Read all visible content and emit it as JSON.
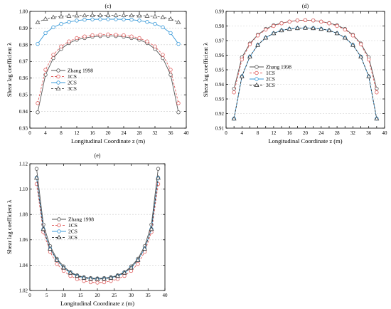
{
  "chart_data": [
    {
      "type": "line",
      "panel_label": "(c)",
      "xlabel": "Longitudinal Coordinate z (m)",
      "ylabel": "Shear lag coefficient λ",
      "xlim": [
        0,
        40
      ],
      "ylim": [
        0.93,
        1.0
      ],
      "xticks": [
        0,
        4,
        8,
        12,
        16,
        20,
        24,
        28,
        32,
        36,
        40
      ],
      "yticks": [
        0.93,
        0.94,
        0.95,
        0.96,
        0.97,
        0.98,
        0.99,
        1.0
      ],
      "ytick_labels": [
        "0.93",
        "0.94",
        "0.95",
        "0.96",
        "0.97",
        "0.98",
        "0.99",
        "1.00"
      ],
      "grid": true,
      "legend_position": "center-left",
      "x": [
        2,
        4,
        6,
        8,
        10,
        12,
        14,
        16,
        18,
        20,
        22,
        24,
        26,
        28,
        30,
        32,
        34,
        36,
        38
      ],
      "series": [
        {
          "name": "Zhang 1998",
          "color": "#555555",
          "marker": "circle",
          "dash": "solid",
          "values": [
            0.9395,
            0.962,
            0.972,
            0.9775,
            0.981,
            0.983,
            0.984,
            0.9848,
            0.9852,
            0.9853,
            0.9852,
            0.9848,
            0.984,
            0.983,
            0.981,
            0.9775,
            0.972,
            0.962,
            0.9395
          ]
        },
        {
          "name": "1CS",
          "color": "#e06060",
          "marker": "circle",
          "dash": "dashed",
          "values": [
            0.945,
            0.965,
            0.974,
            0.979,
            0.982,
            0.984,
            0.985,
            0.9857,
            0.986,
            0.9862,
            0.986,
            0.9857,
            0.985,
            0.984,
            0.982,
            0.979,
            0.974,
            0.965,
            0.945
          ]
        },
        {
          "name": "2CS",
          "color": "#3a9ad9",
          "marker": "circle",
          "dash": "solid",
          "values": [
            0.9805,
            0.987,
            0.9905,
            0.9925,
            0.9937,
            0.9945,
            0.995,
            0.9952,
            0.9953,
            0.9953,
            0.9953,
            0.9952,
            0.995,
            0.9945,
            0.9937,
            0.9925,
            0.9905,
            0.987,
            0.9805
          ]
        },
        {
          "name": "3CS",
          "color": "#555555",
          "marker": "triangle",
          "dash": "dashed",
          "values": [
            0.9935,
            0.9955,
            0.9965,
            0.997,
            0.9973,
            0.9975,
            0.9976,
            0.9977,
            0.9977,
            0.9977,
            0.9977,
            0.9977,
            0.9976,
            0.9975,
            0.9973,
            0.997,
            0.9965,
            0.9955,
            0.9935
          ]
        }
      ]
    },
    {
      "type": "line",
      "panel_label": "(d)",
      "xlabel": "Longitudinal Coordinate z (m)",
      "ylabel": "Shear lag coefficient λ",
      "xlim": [
        0,
        40
      ],
      "ylim": [
        0.91,
        0.99
      ],
      "xticks": [
        0,
        2,
        4,
        6,
        8,
        10,
        12,
        14,
        16,
        18,
        20,
        22,
        24,
        26,
        28,
        30,
        32,
        34,
        36,
        38,
        40
      ],
      "xtick_labels": [
        "0",
        "",
        "4",
        "",
        "8",
        "",
        "12",
        "",
        "16",
        "",
        "20",
        "",
        "24",
        "",
        "28",
        "",
        "32",
        "",
        "36",
        "",
        "40"
      ],
      "yticks": [
        0.91,
        0.92,
        0.93,
        0.94,
        0.95,
        0.96,
        0.97,
        0.98,
        0.99
      ],
      "ytick_labels": [
        "0.91",
        "0.92",
        "0.93",
        "0.94",
        "0.95",
        "0.96",
        "0.97",
        "0.98",
        "0.99"
      ],
      "grid": true,
      "legend_position": "center",
      "x": [
        2,
        4,
        6,
        8,
        10,
        12,
        14,
        16,
        18,
        20,
        22,
        24,
        26,
        28,
        30,
        32,
        34,
        36,
        38
      ],
      "series": [
        {
          "name": "Zhang 1998",
          "color": "#555555",
          "marker": "circle",
          "dash": "solid",
          "values": [
            0.937,
            0.9585,
            0.968,
            0.974,
            0.978,
            0.9805,
            0.982,
            0.983,
            0.9838,
            0.984,
            0.9838,
            0.983,
            0.982,
            0.9805,
            0.978,
            0.974,
            0.968,
            0.9585,
            0.937
          ]
        },
        {
          "name": "1CS",
          "color": "#e06060",
          "marker": "circle",
          "dash": "dashed",
          "values": [
            0.9345,
            0.957,
            0.9675,
            0.9735,
            0.9775,
            0.98,
            0.9818,
            0.983,
            0.9838,
            0.984,
            0.9838,
            0.983,
            0.9818,
            0.98,
            0.9775,
            0.9735,
            0.9675,
            0.957,
            0.9345
          ]
        },
        {
          "name": "2CS",
          "color": "#3a9ad9",
          "marker": "circle",
          "dash": "solid",
          "values": [
            0.9165,
            0.9455,
            0.959,
            0.967,
            0.972,
            0.975,
            0.977,
            0.978,
            0.9785,
            0.9787,
            0.9785,
            0.978,
            0.977,
            0.975,
            0.972,
            0.967,
            0.959,
            0.9455,
            0.9165
          ]
        },
        {
          "name": "3CS",
          "color": "#333333",
          "marker": "triangle",
          "dash": "dashed",
          "values": [
            0.9165,
            0.9455,
            0.959,
            0.967,
            0.972,
            0.975,
            0.977,
            0.978,
            0.9785,
            0.9787,
            0.9785,
            0.978,
            0.977,
            0.975,
            0.972,
            0.967,
            0.959,
            0.9455,
            0.9165
          ]
        }
      ]
    },
    {
      "type": "line",
      "panel_label": "(e)",
      "xlabel": "Longitudinal Coordinate z (m)",
      "ylabel": "Shear lag coefficient λ",
      "xlim": [
        0,
        40
      ],
      "ylim": [
        1.02,
        1.12
      ],
      "xticks": [
        0,
        5,
        10,
        15,
        20,
        25,
        30,
        35,
        40
      ],
      "yticks": [
        1.02,
        1.04,
        1.06,
        1.08,
        1.1,
        1.12
      ],
      "ytick_labels": [
        "1.02",
        "1.04",
        "1.06",
        "1.08",
        "1.10",
        "1.12"
      ],
      "grid": true,
      "legend_position": "top-center",
      "x": [
        2,
        4,
        6,
        8,
        10,
        12,
        14,
        16,
        18,
        20,
        22,
        24,
        26,
        28,
        30,
        32,
        34,
        36,
        38
      ],
      "series": [
        {
          "name": "Zhang 1998",
          "color": "#555555",
          "marker": "circle",
          "dash": "solid",
          "values": [
            1.116,
            1.072,
            1.055,
            1.045,
            1.039,
            1.0345,
            1.032,
            1.0305,
            1.0298,
            1.0295,
            1.0298,
            1.0305,
            1.032,
            1.0345,
            1.039,
            1.045,
            1.055,
            1.072,
            1.116
          ]
        },
        {
          "name": "1CS",
          "color": "#e06060",
          "marker": "circle",
          "dash": "dashed",
          "values": [
            1.104,
            1.066,
            1.0505,
            1.041,
            1.0355,
            1.0315,
            1.029,
            1.0275,
            1.0265,
            1.0262,
            1.0265,
            1.0275,
            1.029,
            1.0315,
            1.0355,
            1.041,
            1.0505,
            1.066,
            1.104
          ]
        },
        {
          "name": "2CS",
          "color": "#3a9ad9",
          "marker": "circle",
          "dash": "solid",
          "values": [
            1.109,
            1.0685,
            1.053,
            1.044,
            1.038,
            1.034,
            1.0315,
            1.03,
            1.0293,
            1.029,
            1.0293,
            1.03,
            1.0315,
            1.034,
            1.038,
            1.044,
            1.053,
            1.0685,
            1.109
          ]
        },
        {
          "name": "3CS",
          "color": "#333333",
          "marker": "triangle",
          "dash": "dashed",
          "values": [
            1.109,
            1.0685,
            1.053,
            1.044,
            1.038,
            1.034,
            1.0315,
            1.03,
            1.0293,
            1.029,
            1.0293,
            1.03,
            1.0315,
            1.034,
            1.038,
            1.044,
            1.053,
            1.0685,
            1.109
          ]
        }
      ]
    }
  ]
}
